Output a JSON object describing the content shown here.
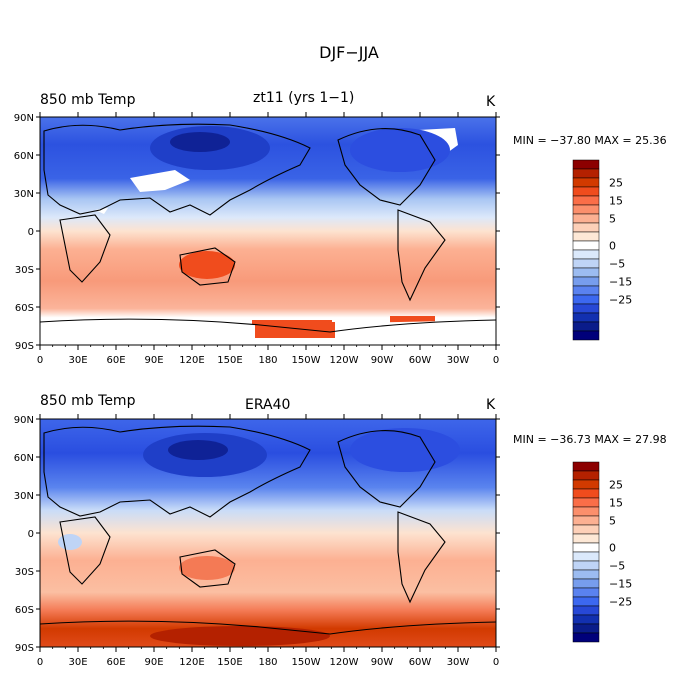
{
  "main_title": "DJF−JJA",
  "units": "K",
  "panels": [
    {
      "field": "850 mb Temp",
      "case": "zt11 (yrs 1−1)",
      "units": "K",
      "stats": "MIN = −37.80 MAX =  25.36"
    },
    {
      "field": "850 mb Temp",
      "case": "ERA40",
      "units": "K",
      "stats": "MIN = −36.73 MAX =  27.98"
    }
  ],
  "lat_ticks": [
    "90N",
    "60N",
    "30N",
    "0",
    "30S",
    "60S",
    "90S"
  ],
  "lon_ticks": [
    "0",
    "30E",
    "60E",
    "90E",
    "120E",
    "150E",
    "180",
    "150W",
    "120W",
    "90W",
    "60W",
    "30W",
    "0"
  ],
  "colorbar": {
    "colors": [
      "#8c0000",
      "#b42100",
      "#d23a00",
      "#f04c1d",
      "#fa6e48",
      "#fb8f6c",
      "#fcb092",
      "#fdd0b8",
      "#fde8d6",
      "#ffffff",
      "#dbe9fb",
      "#bfd4f6",
      "#9cbcf1",
      "#779ded",
      "#5a82f0",
      "#3c68f0",
      "#2748d6",
      "#1230b0",
      "#0a1c8a",
      "#00007a"
    ],
    "labels": [
      "25",
      "15",
      "5",
      "0",
      "−5",
      "−15",
      "−25"
    ]
  }
}
